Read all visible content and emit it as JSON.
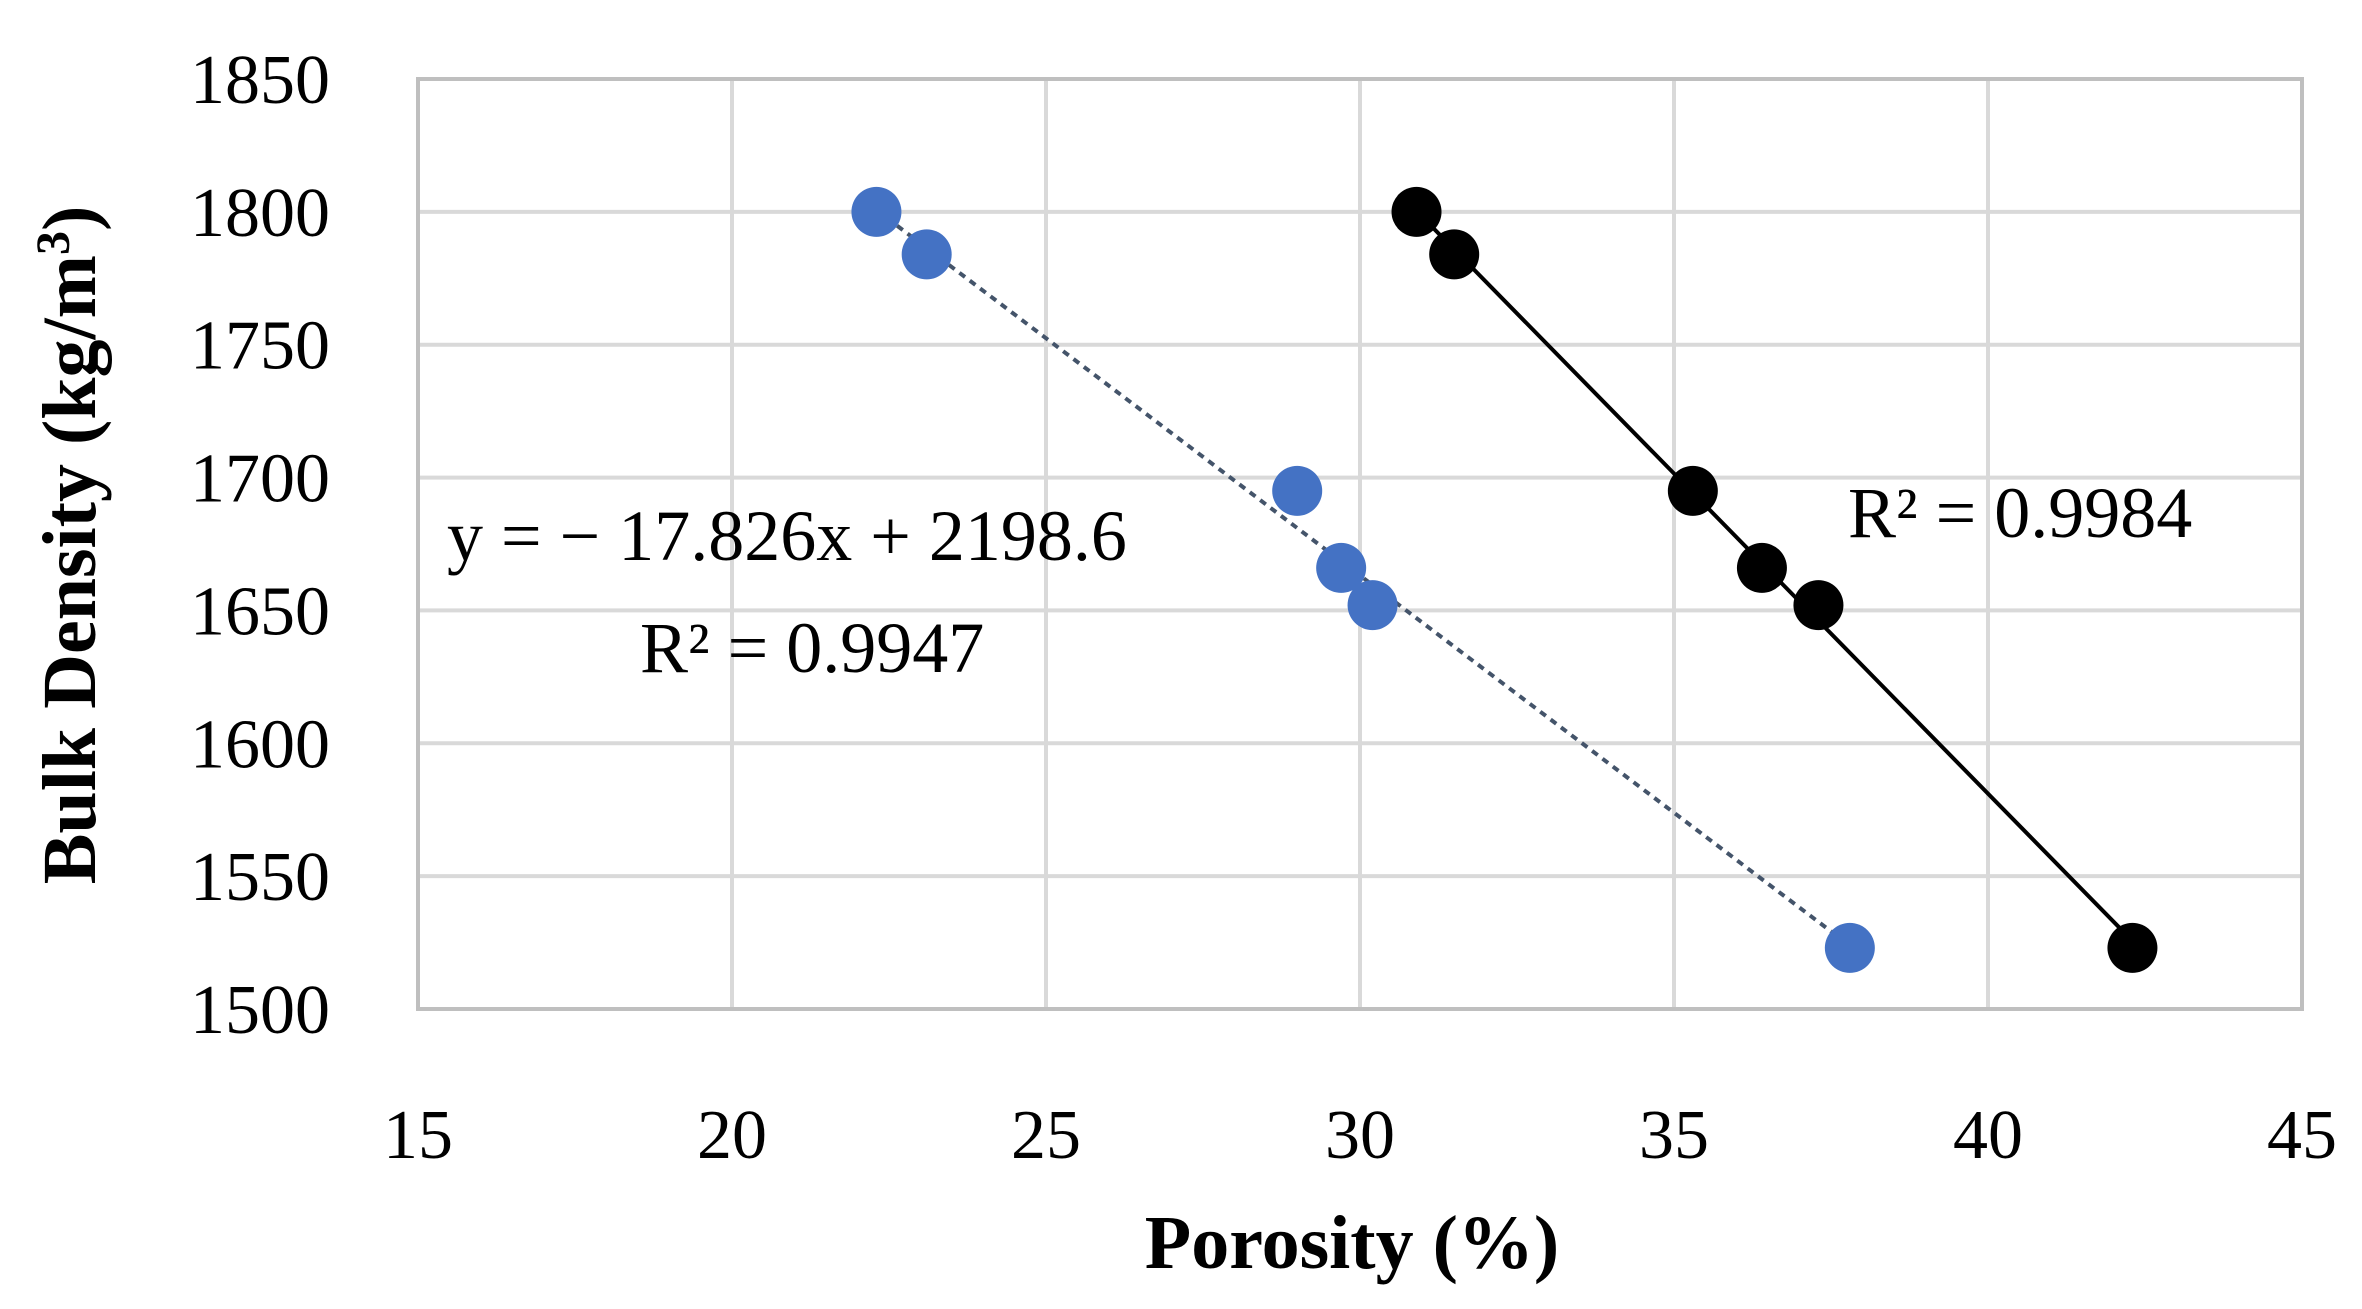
{
  "chart_data": {
    "type": "scatter",
    "xlabel": "Porosity (%)",
    "ylabel_main": "Bulk Density (kg/m",
    "ylabel_sup": "3",
    "ylabel_close": ")",
    "xlim": [
      15,
      45
    ],
    "ylim": [
      1500,
      1850
    ],
    "x_ticks": [
      15,
      20,
      25,
      30,
      35,
      40,
      45
    ],
    "y_ticks": [
      1500,
      1550,
      1600,
      1650,
      1700,
      1750,
      1800,
      1850
    ],
    "grid": true,
    "series": [
      {
        "name": "blue-series",
        "color": "#4472c4",
        "trendline": "dotted",
        "trendline_color": "#44546a",
        "x": [
          22.3,
          23.1,
          29.0,
          29.7,
          30.2,
          37.8
        ],
        "y": [
          1800,
          1784,
          1695,
          1666,
          1652,
          1523
        ],
        "equation": "y = − 17.826x + 2198.6",
        "r2": "R² = 0.9947"
      },
      {
        "name": "black-series",
        "color": "#000000",
        "trendline": "solid",
        "trendline_color": "#000000",
        "x": [
          30.9,
          31.5,
          35.3,
          36.4,
          37.3,
          42.3
        ],
        "y": [
          1800,
          1784,
          1695,
          1666,
          1652,
          1523
        ],
        "r2": "R² = 0.9984"
      }
    ]
  }
}
